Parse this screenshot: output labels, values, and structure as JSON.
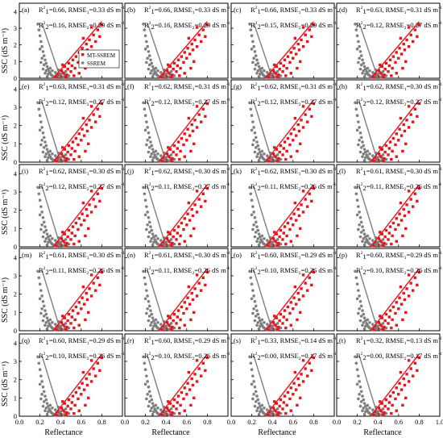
{
  "figure": {
    "ylabel": "SSC (dS m⁻¹)",
    "xlabel": "Reflectance",
    "x_ticks": [
      "0.0",
      "0.2",
      "0.4",
      "0.6",
      "0.8",
      "1.0"
    ],
    "y_ticks": [
      "0",
      "1",
      "2",
      "3",
      "4"
    ],
    "legend": {
      "series1": "MT-SSREM",
      "series2": "SSREM"
    },
    "colors": {
      "series1": "#e8141c",
      "series2": "#7f7f7f",
      "axis": "#000000"
    }
  },
  "chart_data": {
    "type": "scatter",
    "grid": "4 columns x 5 rows of panels",
    "xlim": [
      0,
      1.0
    ],
    "ylim": [
      0,
      4.5
    ],
    "panels": [
      {
        "label": "(a)",
        "r1": "0.66",
        "rmse1": "0.33",
        "r2": "0.16",
        "rmse2": "0.29"
      },
      {
        "label": "(b)",
        "r1": "0.66",
        "rmse1": "0.33",
        "r2": "0.16",
        "rmse2": "0.29"
      },
      {
        "label": "(c)",
        "r1": "0.66",
        "rmse1": "0.33",
        "r2": "0.15",
        "rmse2": "0.29"
      },
      {
        "label": "(d)",
        "r1": "0.63",
        "rmse1": "0.31",
        "r2": "0.12",
        "rmse2": "0.27"
      },
      {
        "label": "(e)",
        "r1": "0.63",
        "rmse1": "0.31",
        "r2": "0.12",
        "rmse2": "0.27"
      },
      {
        "label": "(f)",
        "r1": "0.62",
        "rmse1": "0.31",
        "r2": "0.12",
        "rmse2": "0.27"
      },
      {
        "label": "(g)",
        "r1": "0.62",
        "rmse1": "0.31",
        "r2": "0.12",
        "rmse2": "0.27"
      },
      {
        "label": "(h)",
        "r1": "0.62",
        "rmse1": "0.30",
        "r2": "0.12",
        "rmse2": "0.27"
      },
      {
        "label": "(i)",
        "r1": "0.62",
        "rmse1": "0.30",
        "r2": "0.12",
        "rmse2": "0.27"
      },
      {
        "label": "(j)",
        "r1": "0.62",
        "rmse1": "0.30",
        "r2": "0.11",
        "rmse2": "0.27"
      },
      {
        "label": "(k)",
        "r1": "0.62",
        "rmse1": "0.30",
        "r2": "0.11",
        "rmse2": "0.26"
      },
      {
        "label": "(l)",
        "r1": "0.61",
        "rmse1": "0.30",
        "r2": "0.11",
        "rmse2": "0.26"
      },
      {
        "label": "(m)",
        "r1": "0.61",
        "rmse1": "0.30",
        "r2": "0.11",
        "rmse2": "0.26"
      },
      {
        "label": "(n)",
        "r1": "0.61",
        "rmse1": "0.30",
        "r2": "0.11",
        "rmse2": "0.26"
      },
      {
        "label": "(o)",
        "r1": "0.60",
        "rmse1": "0.29",
        "r2": "0.10",
        "rmse2": "0.26"
      },
      {
        "label": "(p)",
        "r1": "0.60",
        "rmse1": "0.29",
        "r2": "0.10",
        "rmse2": "0.26"
      },
      {
        "label": "(q)",
        "r1": "0.60",
        "rmse1": "0.29",
        "r2": "0.10",
        "rmse2": "0.26"
      },
      {
        "label": "(r)",
        "r1": "0.60",
        "rmse1": "0.29",
        "r2": "0.10",
        "rmse2": "0.26"
      },
      {
        "label": "(s)",
        "r1": "0.33",
        "rmse1": "0.14",
        "r2": "0.00",
        "rmse2": "0.17"
      },
      {
        "label": "(t)",
        "r1": "0.32",
        "rmse1": "0.13",
        "r2": "0.00",
        "rmse2": "0.17"
      }
    ],
    "series": [
      {
        "name": "MT-SSREM",
        "color": "#e8141c",
        "fit_line": [
          [
            0.33,
            0.0
          ],
          [
            0.8,
            3.4
          ]
        ],
        "points": [
          [
            0.36,
            0.05
          ],
          [
            0.38,
            0.25
          ],
          [
            0.4,
            0.1
          ],
          [
            0.41,
            0.45
          ],
          [
            0.43,
            0.3
          ],
          [
            0.44,
            0.7
          ],
          [
            0.46,
            0.2
          ],
          [
            0.47,
            0.55
          ],
          [
            0.48,
            0.9
          ],
          [
            0.5,
            0.4
          ],
          [
            0.51,
            0.75
          ],
          [
            0.52,
            1.1
          ],
          [
            0.54,
            0.6
          ],
          [
            0.55,
            1.3
          ],
          [
            0.57,
            0.95
          ],
          [
            0.58,
            1.55
          ],
          [
            0.6,
            1.2
          ],
          [
            0.61,
            1.8
          ],
          [
            0.63,
            1.45
          ],
          [
            0.65,
            2.05
          ],
          [
            0.66,
            1.7
          ],
          [
            0.68,
            2.3
          ],
          [
            0.7,
            1.9
          ],
          [
            0.72,
            2.6
          ],
          [
            0.74,
            2.2
          ],
          [
            0.76,
            2.9
          ],
          [
            0.78,
            2.5
          ],
          [
            0.8,
            3.2
          ],
          [
            0.7,
            3.05
          ],
          [
            0.62,
            2.4
          ],
          [
            0.45,
            0.05
          ],
          [
            0.53,
            0.15
          ],
          [
            0.58,
            0.3
          ],
          [
            0.64,
            0.6
          ],
          [
            0.67,
            1.0
          ],
          [
            0.42,
            0.8
          ]
        ]
      },
      {
        "name": "SSREM",
        "color": "#7f7f7f",
        "fit_line": [
          [
            0.22,
            3.3
          ],
          [
            0.4,
            0.0
          ]
        ],
        "points": [
          [
            0.18,
            3.25
          ],
          [
            0.19,
            2.9
          ],
          [
            0.2,
            2.55
          ],
          [
            0.21,
            2.2
          ],
          [
            0.22,
            1.9
          ],
          [
            0.23,
            1.6
          ],
          [
            0.24,
            1.35
          ],
          [
            0.25,
            1.1
          ],
          [
            0.26,
            0.9
          ],
          [
            0.27,
            0.7
          ],
          [
            0.28,
            0.55
          ],
          [
            0.29,
            0.4
          ],
          [
            0.3,
            0.3
          ],
          [
            0.31,
            0.2
          ],
          [
            0.32,
            0.15
          ],
          [
            0.33,
            0.1
          ],
          [
            0.34,
            0.05
          ],
          [
            0.35,
            0.12
          ],
          [
            0.36,
            0.2
          ],
          [
            0.37,
            0.08
          ],
          [
            0.38,
            0.3
          ],
          [
            0.39,
            0.15
          ],
          [
            0.4,
            0.25
          ],
          [
            0.41,
            0.1
          ],
          [
            0.42,
            0.35
          ],
          [
            0.43,
            0.05
          ],
          [
            0.44,
            0.2
          ],
          [
            0.45,
            0.4
          ],
          [
            0.46,
            0.1
          ],
          [
            0.48,
            0.15
          ],
          [
            0.3,
            0.6
          ],
          [
            0.28,
            0.25
          ],
          [
            0.26,
            0.45
          ],
          [
            0.24,
            0.8
          ],
          [
            0.22,
            1.2
          ],
          [
            0.2,
            1.75
          ],
          [
            0.25,
            0.3
          ],
          [
            0.27,
            0.1
          ],
          [
            0.32,
            0.45
          ],
          [
            0.35,
            0.35
          ],
          [
            0.38,
            0.5
          ],
          [
            0.21,
            0.95
          ],
          [
            0.23,
            0.55
          ]
        ]
      }
    ]
  }
}
